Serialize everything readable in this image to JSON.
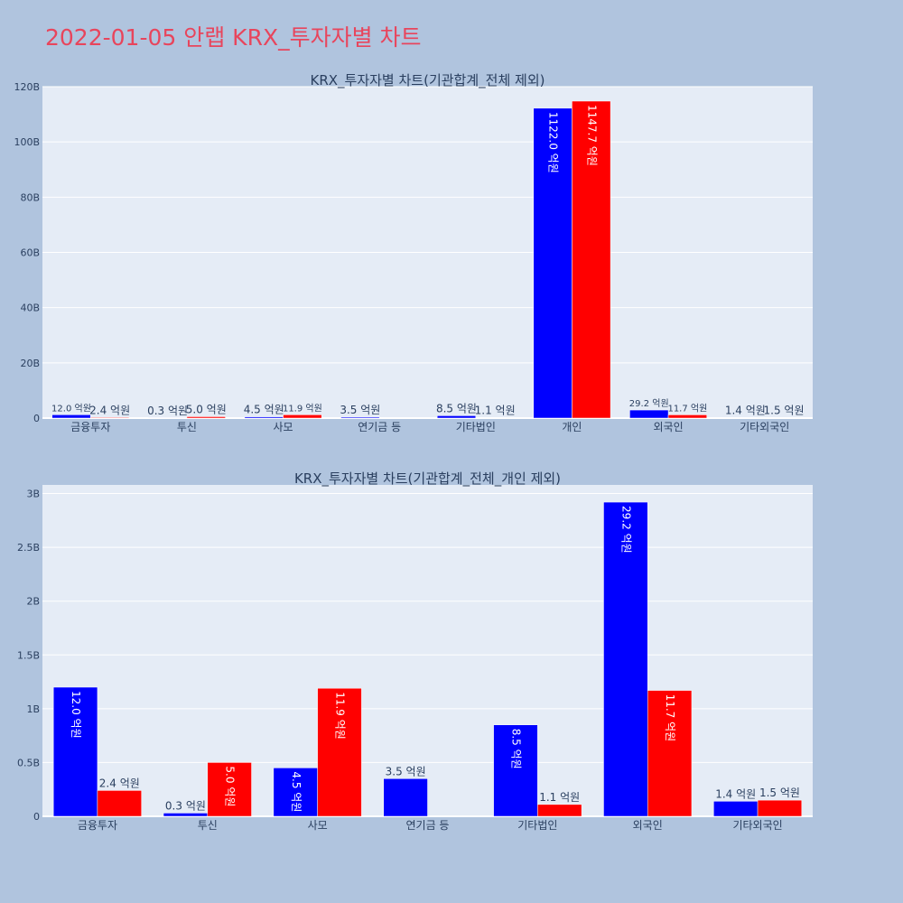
{
  "page": {
    "title": "2022-01-05 안랩 KRX_투자자별 차트"
  },
  "colors": {
    "buy": "#0000ff",
    "sell": "#ff0000",
    "plot_bg": "#e5ecf6",
    "page_bg": "#b0c4de",
    "title": "#e8455c"
  },
  "chart_data": [
    {
      "type": "bar",
      "title": "KRX_투자자별 차트(기관합계_전체 제외)",
      "categories": [
        "금융투자",
        "투신",
        "사모",
        "연기금 등",
        "기타법인",
        "개인",
        "외국인",
        "기타외국인"
      ],
      "series": [
        {
          "values": [
            1.2,
            0.03,
            0.45,
            0.35,
            0.85,
            112.2,
            2.92,
            0.14
          ],
          "labels": [
            "12.0 억원",
            "0.3 억원",
            "4.5 억원",
            "3.5 억원",
            "8.5 억원",
            "1122.0 억원",
            "29.2 억원",
            "1.4 억원"
          ]
        },
        {
          "values": [
            0.24,
            0.5,
            1.19,
            0,
            0.11,
            114.77,
            1.17,
            0.15
          ],
          "labels": [
            "2.4 억원",
            "5.0 억원",
            "11.9 억원",
            "",
            "1.1 억원",
            "1147.7 억원",
            "11.7 억원",
            "1.5 억원"
          ]
        }
      ],
      "ylim": [
        0,
        120
      ],
      "yticks": [
        0,
        20,
        40,
        60,
        80,
        100,
        120
      ],
      "ytick_labels": [
        "0",
        "20B",
        "40B",
        "60B",
        "80B",
        "100B",
        "120B"
      ],
      "grid": true,
      "legend": "none"
    },
    {
      "type": "bar",
      "title": "KRX_투자자별 차트(기관합계_전체_개인 제외)",
      "categories": [
        "금융투자",
        "투신",
        "사모",
        "연기금 등",
        "기타법인",
        "외국인",
        "기타외국인"
      ],
      "series": [
        {
          "values": [
            1.2,
            0.03,
            0.45,
            0.35,
            0.85,
            2.92,
            0.14
          ],
          "labels": [
            "12.0 억원",
            "0.3 억원",
            "4.5 억원",
            "3.5 억원",
            "8.5 억원",
            "29.2 억원",
            "1.4 억원"
          ]
        },
        {
          "values": [
            0.24,
            0.5,
            1.19,
            0,
            0.11,
            1.17,
            0.15
          ],
          "labels": [
            "2.4 억원",
            "5.0 억원",
            "11.9 억원",
            "",
            "1.1 억원",
            "11.7 억원",
            "1.5 억원"
          ]
        }
      ],
      "ylim": [
        0,
        3.08
      ],
      "yticks": [
        0,
        0.5,
        1,
        1.5,
        2,
        2.5,
        3
      ],
      "ytick_labels": [
        "0",
        "0.5B",
        "1B",
        "1.5B",
        "2B",
        "2.5B",
        "3B"
      ],
      "grid": true,
      "legend": "none"
    }
  ]
}
